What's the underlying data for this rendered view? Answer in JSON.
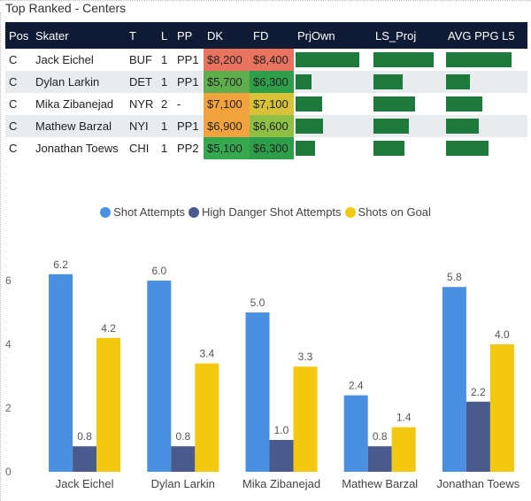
{
  "title": "Top Ranked - Centers",
  "table": {
    "headers": {
      "pos": "Pos",
      "skater": "Skater",
      "team": "T",
      "line": "L",
      "pp": "PP",
      "dk": "DK",
      "fd": "FD",
      "prjown": "PrjOwn",
      "ls_proj": "LS_Proj",
      "avg_ppg": "AVG PPG L5"
    },
    "rows": [
      {
        "pos": "C",
        "skater": "Jack Eichel",
        "team": "BUF",
        "line": "1",
        "pp": "PP1",
        "dk": "$8,200",
        "fd": "$8,400",
        "dk_color": "#e8735f",
        "fd_color": "#e8735f",
        "prjown": 1.0,
        "ls_proj": 1.0,
        "avg_ppg": 1.0
      },
      {
        "pos": "C",
        "skater": "Dylan Larkin",
        "team": "DET",
        "line": "1",
        "pp": "PP1",
        "dk": "$5,700",
        "fd": "$6,300",
        "dk_color": "#5fae4e",
        "fd_color": "#2e9e4a",
        "prjown": 0.25,
        "ls_proj": 0.48,
        "avg_ppg": 0.37
      },
      {
        "pos": "C",
        "skater": "Mika Zibanejad",
        "team": "NYR",
        "line": "2",
        "pp": "-",
        "dk": "$7,100",
        "fd": "$7,100",
        "dk_color": "#f2a33d",
        "fd_color": "#d7c23a",
        "prjown": 0.42,
        "ls_proj": 0.69,
        "avg_ppg": 0.55
      },
      {
        "pos": "C",
        "skater": "Mathew Barzal",
        "team": "NYI",
        "line": "1",
        "pp": "PP1",
        "dk": "$6,900",
        "fd": "$6,600",
        "dk_color": "#f2a33d",
        "fd_color": "#8fbf45",
        "prjown": 0.43,
        "ls_proj": 0.59,
        "avg_ppg": 0.5
      },
      {
        "pos": "C",
        "skater": "Jonathan Toews",
        "team": "CHI",
        "line": "1",
        "pp": "PP2",
        "dk": "$5,100",
        "fd": "$6,300",
        "dk_color": "#36a84e",
        "fd_color": "#2e9e4a",
        "prjown": 0.3,
        "ls_proj": 0.52,
        "avg_ppg": 0.65
      }
    ]
  },
  "legend": [
    {
      "label": "Shot Attempts",
      "color": "#4a90e2"
    },
    {
      "label": "High Danger Shot Attempts",
      "color": "#4a5a8c"
    },
    {
      "label": "Shots on Goal",
      "color": "#f2c811"
    }
  ],
  "chart_data": {
    "type": "bar",
    "categories": [
      "Jack Eichel",
      "Dylan Larkin",
      "Mika Zibanejad",
      "Mathew Barzal",
      "Jonathan Toews"
    ],
    "series": [
      {
        "name": "Shot Attempts",
        "values": [
          6.2,
          6.0,
          5.0,
          2.4,
          5.8
        ],
        "color": "#4a90e2"
      },
      {
        "name": "High Danger Shot Attempts",
        "values": [
          0.8,
          0.8,
          1.0,
          0.8,
          2.2
        ],
        "color": "#4a5a8c"
      },
      {
        "name": "Shots on Goal",
        "values": [
          4.2,
          3.4,
          3.3,
          1.4,
          4.0
        ],
        "color": "#f2c811"
      }
    ],
    "yticks": [
      "0",
      "2",
      "4",
      "6"
    ],
    "ylim": [
      0,
      7
    ],
    "labels": [
      [
        "6.2",
        "0.8",
        "4.2"
      ],
      [
        "6.0",
        "0.8",
        "3.4"
      ],
      [
        "5.0",
        "1.0",
        "3.3"
      ],
      [
        "2.4",
        "0.8",
        "1.4"
      ],
      [
        "5.8",
        "2.2",
        "4.0"
      ]
    ]
  }
}
